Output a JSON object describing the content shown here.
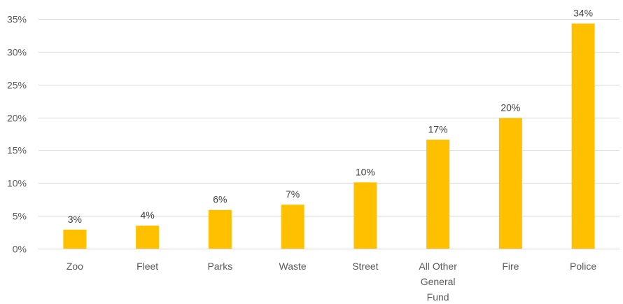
{
  "chart_data": {
    "type": "bar",
    "title": "",
    "xlabel": "",
    "ylabel": "",
    "categories": [
      "Zoo",
      "Fleet",
      "Parks",
      "Waste",
      "Street",
      "All Other General Fund",
      "Fire",
      "Police"
    ],
    "category_lines": [
      [
        "Zoo"
      ],
      [
        "Fleet"
      ],
      [
        "Parks"
      ],
      [
        "Waste"
      ],
      [
        "Street"
      ],
      [
        "All Other",
        "General",
        "Fund"
      ],
      [
        "Fire"
      ],
      [
        "Police"
      ]
    ],
    "values": [
      2.9,
      3.5,
      5.9,
      6.7,
      10.1,
      16.6,
      19.9,
      34.3
    ],
    "data_labels": [
      "3%",
      "4%",
      "6%",
      "7%",
      "10%",
      "17%",
      "20%",
      "34%"
    ],
    "ylim": [
      0,
      35
    ],
    "yticks": [
      0,
      5,
      10,
      15,
      20,
      25,
      30,
      35
    ],
    "ytick_labels": [
      "0%",
      "5%",
      "10%",
      "15%",
      "20%",
      "25%",
      "30%",
      "35%"
    ],
    "grid": true,
    "legend": "none",
    "bar_color": "#FFC000",
    "grid_color": "#D9D9D9"
  }
}
